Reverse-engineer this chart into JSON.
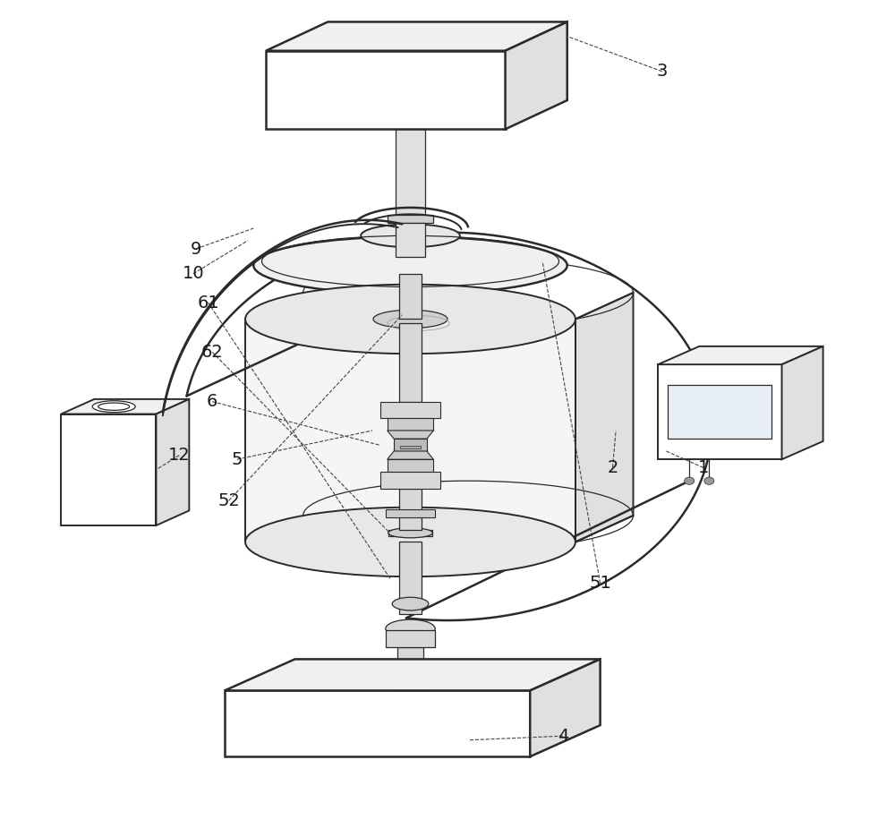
{
  "bg_color": "#ffffff",
  "line_color": "#2a2a2a",
  "label_color": "#1a1a1a",
  "figsize": [
    10.0,
    9.25
  ],
  "dpi": 100,
  "lw_main": 1.4,
  "lw_thin": 0.9,
  "lw_thick": 1.8
}
